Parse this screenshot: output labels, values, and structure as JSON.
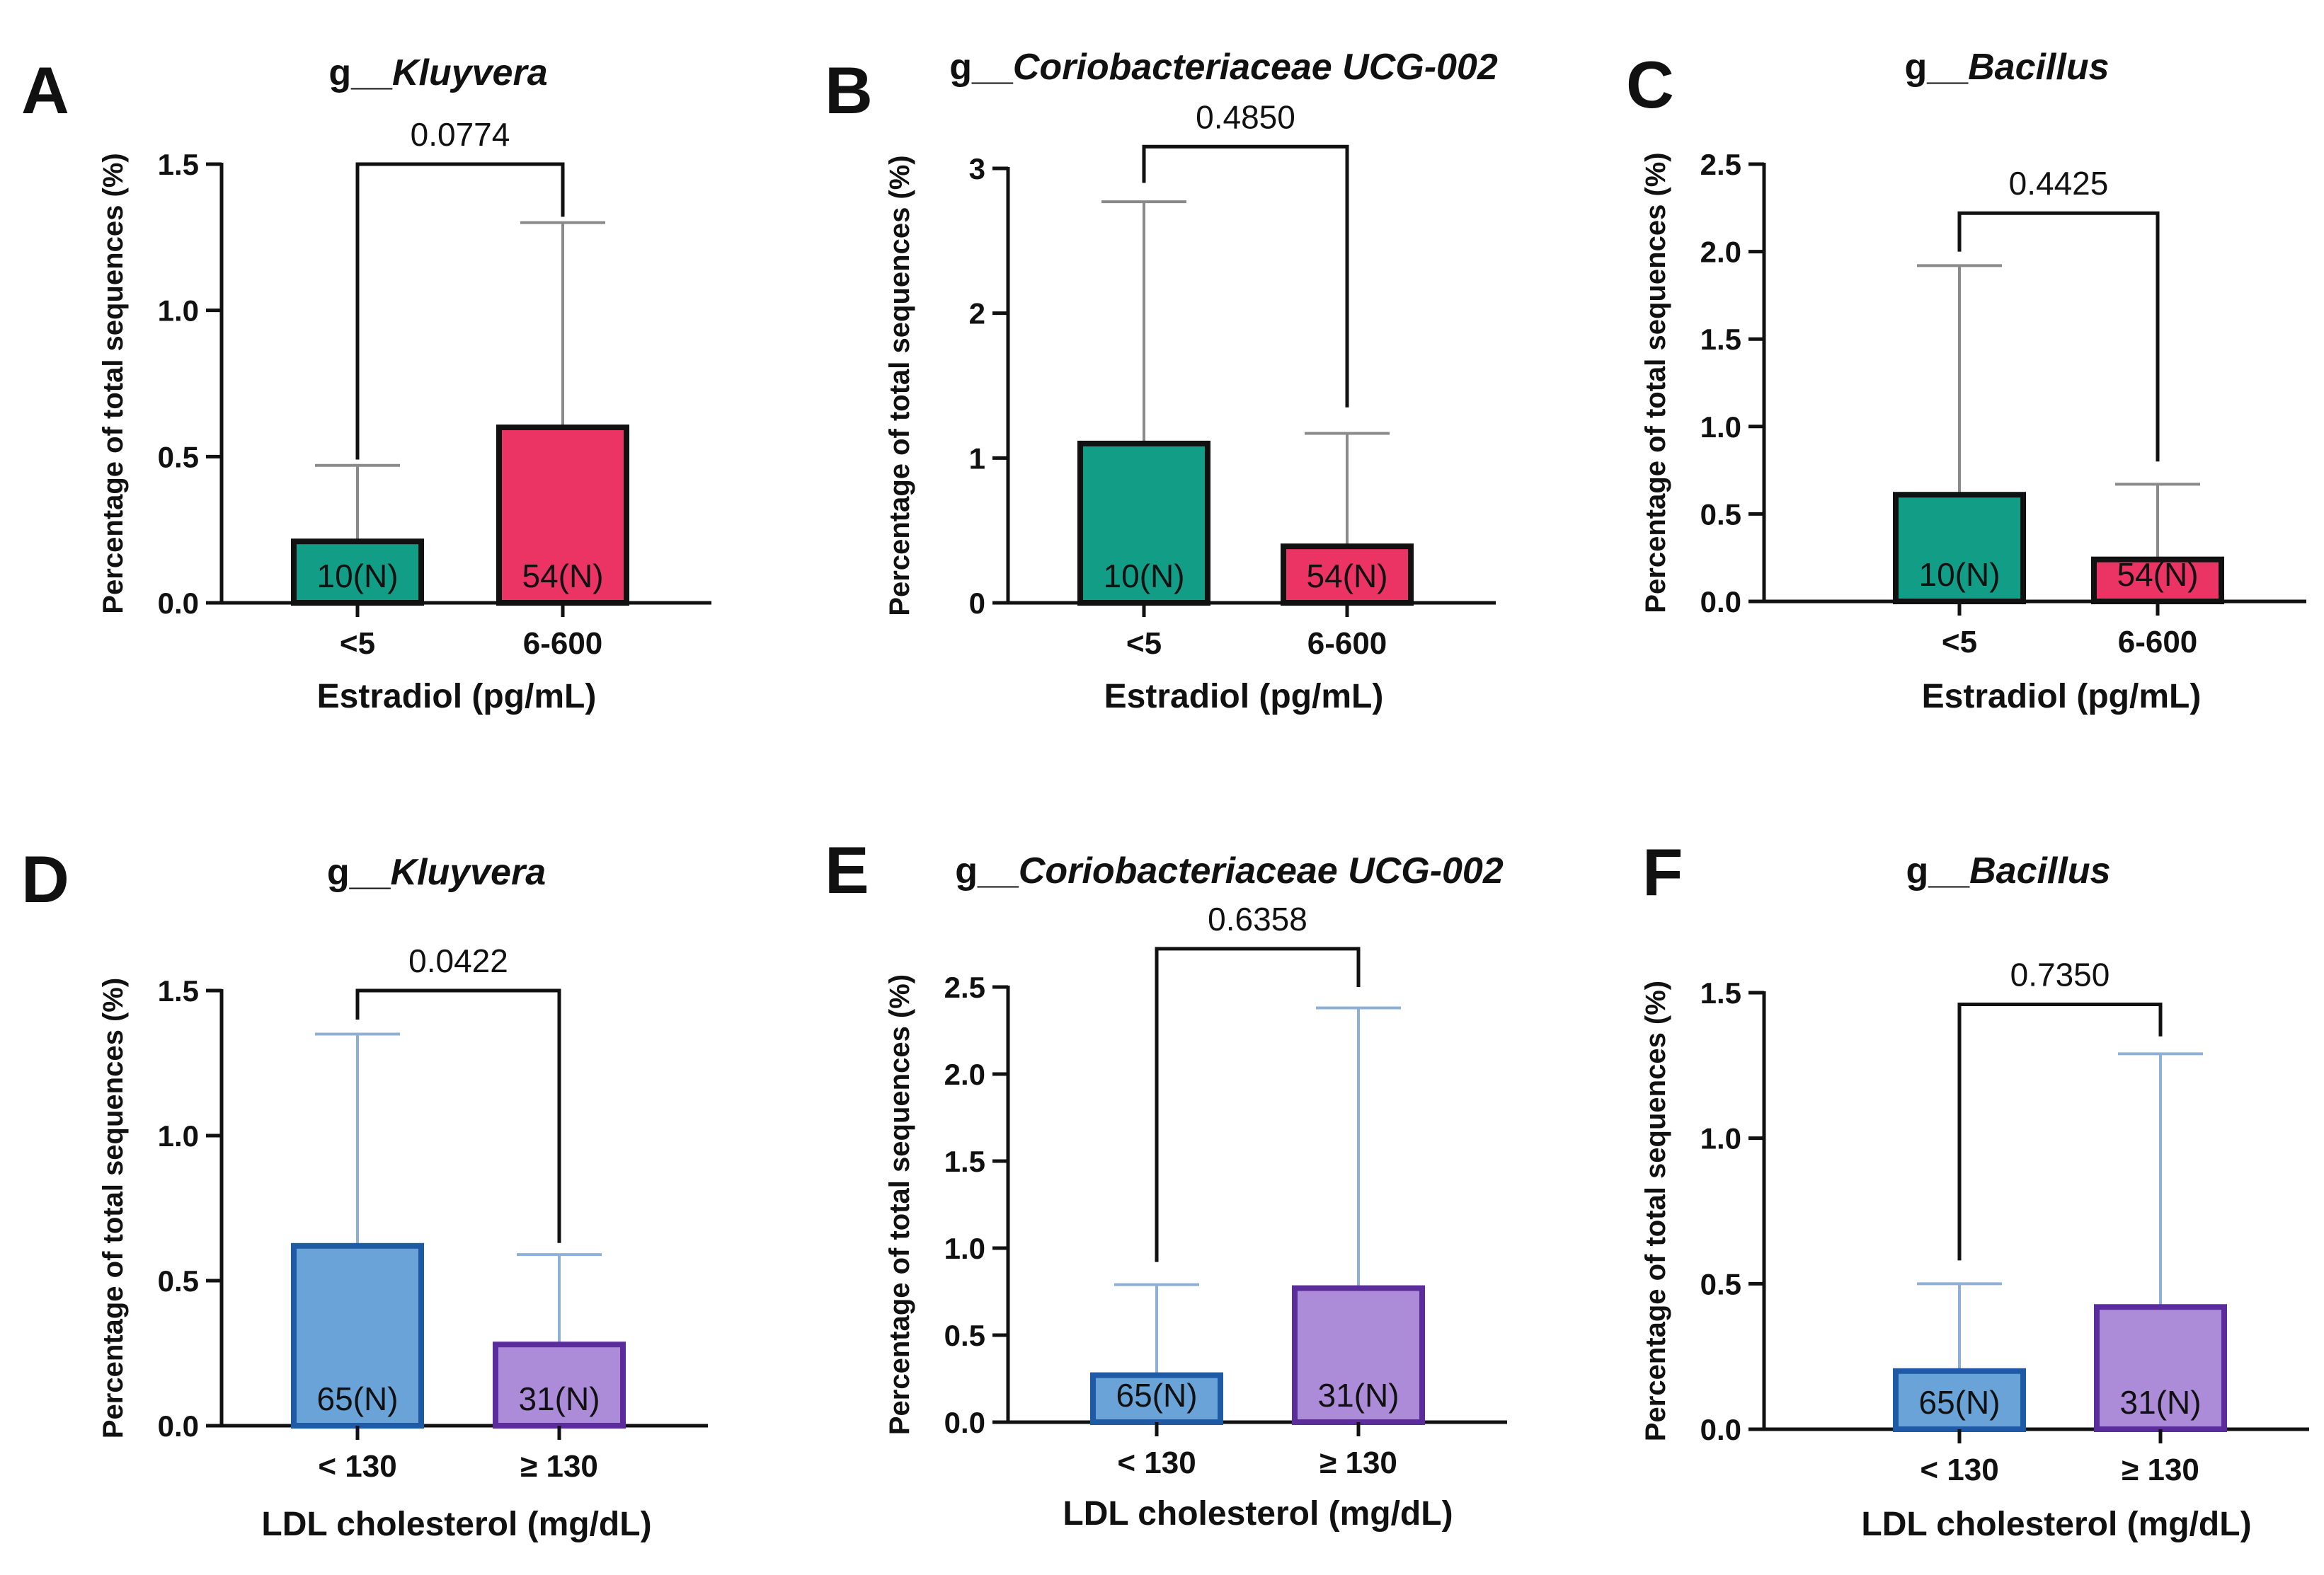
{
  "chart_data": [
    {
      "panel": "A",
      "type": "bar",
      "title_prefix": "g__",
      "title_taxon": "Kluyvera",
      "ylabel": "Percentage of total sequences (%)",
      "xlabel": "Estradiol (pg/mL)",
      "categories": [
        "<5",
        "6-600"
      ],
      "values": [
        0.21,
        0.6
      ],
      "error_upper": [
        0.47,
        1.3
      ],
      "n_labels": [
        "10(N)",
        "54(N)"
      ],
      "colors": [
        "#129e86",
        "#ec3464"
      ],
      "border_colors": [
        "#111111",
        "#111111"
      ],
      "error_color": "#8a8a8a",
      "ylim": [
        0,
        1.5
      ],
      "yticks": [
        0.0,
        0.5,
        1.0,
        1.5
      ],
      "ytick_labels": [
        "0.0",
        "0.5",
        "1.0",
        "1.5"
      ],
      "p_value": "0.0774",
      "bracket_y": [
        0.49,
        1.32,
        1.5
      ]
    },
    {
      "panel": "B",
      "type": "bar",
      "title_prefix": "g__",
      "title_taxon": "Coriobacteriaceae UCG-002",
      "ylabel": "Percentage of total sequences (%)",
      "xlabel": "Estradiol (pg/mL)",
      "categories": [
        "<5",
        "6-600"
      ],
      "values": [
        1.1,
        0.39
      ],
      "error_upper": [
        2.77,
        1.17
      ],
      "n_labels": [
        "10(N)",
        "54(N)"
      ],
      "colors": [
        "#129e86",
        "#ec3464"
      ],
      "border_colors": [
        "#111111",
        "#111111"
      ],
      "error_color": "#8a8a8a",
      "ylim": [
        0,
        3
      ],
      "yticks": [
        0,
        1,
        2,
        3
      ],
      "ytick_labels": [
        "0",
        "1",
        "2",
        "3"
      ],
      "p_value": "0.4850",
      "bracket_y": [
        2.9,
        1.35,
        3.15
      ]
    },
    {
      "panel": "C",
      "type": "bar",
      "title_prefix": "g__",
      "title_taxon": "Bacillus",
      "ylabel": "Percentage of total sequences (%)",
      "xlabel": "Estradiol (pg/mL)",
      "categories": [
        "<5",
        "6-600"
      ],
      "values": [
        0.61,
        0.24
      ],
      "error_upper": [
        1.92,
        0.67
      ],
      "n_labels": [
        "10(N)",
        "54(N)"
      ],
      "colors": [
        "#129e86",
        "#ec3464"
      ],
      "border_colors": [
        "#111111",
        "#111111"
      ],
      "error_color": "#8a8a8a",
      "ylim": [
        0,
        2.5
      ],
      "yticks": [
        0.0,
        0.5,
        1.0,
        1.5,
        2.0,
        2.5
      ],
      "ytick_labels": [
        "0.0",
        "0.5",
        "1.0",
        "1.5",
        "2.0",
        "2.5"
      ],
      "p_value": "0.4425",
      "bracket_y": [
        2.0,
        0.8,
        2.22
      ]
    },
    {
      "panel": "D",
      "type": "bar",
      "title_prefix": "g__",
      "title_taxon": "Kluyvera",
      "ylabel": "Percentage of total sequences (%)",
      "xlabel": "LDL cholesterol (mg/dL)",
      "categories": [
        "< 130",
        "≥ 130"
      ],
      "values": [
        0.62,
        0.28
      ],
      "error_upper": [
        1.35,
        0.59
      ],
      "n_labels": [
        "65(N)",
        "31(N)"
      ],
      "colors": [
        "#6aa3d8",
        "#ac8cd8"
      ],
      "border_colors": [
        "#1f5aa6",
        "#5b2d9c"
      ],
      "error_color": "#8fb0d6",
      "ylim": [
        0,
        1.5
      ],
      "yticks": [
        0.0,
        0.5,
        1.0,
        1.5
      ],
      "ytick_labels": [
        "0.0",
        "0.5",
        "1.0",
        "1.5"
      ],
      "p_value": "0.0422",
      "bracket_y": [
        1.4,
        0.63,
        1.5
      ]
    },
    {
      "panel": "E",
      "type": "bar",
      "title_prefix": "g__",
      "title_taxon": "Coriobacteriaceae UCG-002",
      "ylabel": "Percentage of total sequences (%)",
      "xlabel": "LDL cholesterol (mg/dL)",
      "categories": [
        "< 130",
        "≥ 130"
      ],
      "values": [
        0.27,
        0.77
      ],
      "error_upper": [
        0.79,
        2.38
      ],
      "n_labels": [
        "65(N)",
        "31(N)"
      ],
      "colors": [
        "#6aa3d8",
        "#ac8cd8"
      ],
      "border_colors": [
        "#1f5aa6",
        "#5b2d9c"
      ],
      "error_color": "#8fb0d6",
      "ylim": [
        0,
        2.5
      ],
      "yticks": [
        0.0,
        0.5,
        1.0,
        1.5,
        2.0,
        2.5
      ],
      "ytick_labels": [
        "0.0",
        "0.5",
        "1.0",
        "1.5",
        "2.0",
        "2.5"
      ],
      "p_value": "0.6358",
      "bracket_y": [
        0.92,
        2.5,
        2.72
      ]
    },
    {
      "panel": "F",
      "type": "bar",
      "title_prefix": "g__",
      "title_taxon": "Bacillus",
      "ylabel": "Percentage of total sequences (%)",
      "xlabel": "LDL cholesterol (mg/dL)",
      "categories": [
        "< 130",
        "≥ 130"
      ],
      "values": [
        0.2,
        0.42
      ],
      "error_upper": [
        0.5,
        1.29
      ],
      "n_labels": [
        "65(N)",
        "31(N)"
      ],
      "colors": [
        "#6aa3d8",
        "#ac8cd8"
      ],
      "border_colors": [
        "#1f5aa6",
        "#5b2d9c"
      ],
      "error_color": "#8fb0d6",
      "ylim": [
        0,
        1.5
      ],
      "yticks": [
        0.0,
        0.5,
        1.0,
        1.5
      ],
      "ytick_labels": [
        "0.0",
        "0.5",
        "1.0",
        "1.5"
      ],
      "p_value": "0.7350",
      "bracket_y": [
        0.58,
        1.35,
        1.46
      ]
    }
  ]
}
